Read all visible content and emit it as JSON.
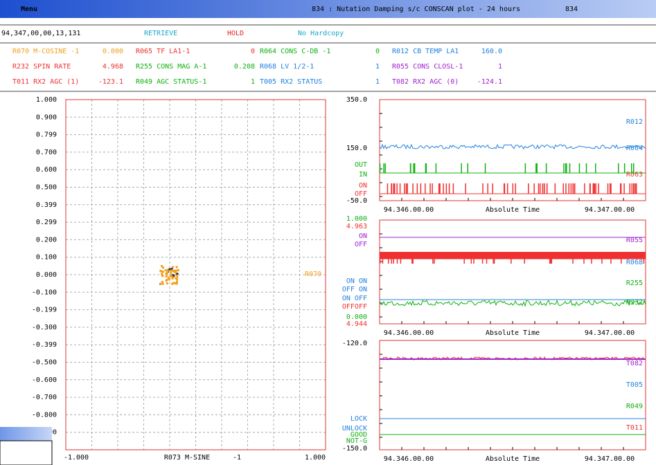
{
  "menu_bar": {
    "menu": "Menu",
    "title": "834 : Nutation Damping s/c CONSCAN plot - 24 hours",
    "id": "834"
  },
  "toolbar": {
    "timestamp": "94,347,00,00,13,131",
    "retrieve": "RETRIEVE",
    "hold": "HOLD",
    "hardcopy": "No Hardcopy"
  },
  "parameters": [
    [
      {
        "name": "R070 M-COSINE -1",
        "value": "0.000"
      },
      {
        "name": "R065 TF LA1-1",
        "value": "0"
      },
      {
        "name": "R064 CONS C-DB -1",
        "value": "0"
      },
      {
        "name": "R012 CB TEMP LA1",
        "value": "160.0"
      }
    ],
    [
      {
        "name": "R232 SPIN RATE",
        "value": "4.968"
      },
      {
        "name": "R255 CONS MAG A-1",
        "value": "0.208"
      },
      {
        "name": "R068 LV 1/2-1",
        "value": "1"
      },
      {
        "name": "R055 CONS CLOSL-1",
        "value": "1"
      }
    ],
    [
      {
        "name": "T011 RX2 AGC (1)",
        "value": "-123.1"
      },
      {
        "name": "R049 AGC STATUS-1",
        "value": "1"
      },
      {
        "name": "T005 RX2 STATUS",
        "value": "1"
      },
      {
        "name": "T082 RX2 AGC (0)",
        "value": "-124.1"
      }
    ]
  ],
  "xy_plot": {
    "yticks": [
      "1.000",
      "0.900",
      "0.799",
      "0.700",
      "0.600",
      "0.500",
      "0.399",
      "0.299",
      "0.200",
      "0.100",
      "0.000",
      "-0.100",
      "-0.199",
      "-0.300",
      "-0.399",
      "-0.500",
      "-0.600",
      "-0.700",
      "-0.800",
      "-0.900"
    ],
    "xlabels": [
      "-1.000",
      "R073 M-SINE",
      "-1",
      "1.000"
    ],
    "trace_label": "R070"
  },
  "time_plots": [
    {
      "left_labels": [
        "350.0",
        "150.0",
        "OUT",
        "IN",
        "ON",
        "OFF",
        "-50.0"
      ],
      "right_labels": [
        "R012",
        "R064",
        "R063"
      ],
      "xlabels": [
        "94.346.00.00",
        "Absolute Time",
        "94.347.00.00"
      ]
    },
    {
      "left_labels": [
        "1.000",
        "4.963",
        "ON",
        "OFF",
        "ON ON",
        "OFF ON",
        "ON OFF",
        "OFFOFF",
        "0.000",
        "4.944"
      ],
      "right_labels": [
        "R055",
        "R068",
        "R255",
        "R232"
      ],
      "xlabels": [
        "94.346.00.00",
        "Absolute Time",
        "94.347.00.00"
      ]
    },
    {
      "left_labels": [
        "-120.0",
        "LOCK",
        "UNLOCK",
        "GOOD",
        "NOT-G",
        "-150.0"
      ],
      "right_labels": [
        "T082",
        "T005",
        "R049",
        "T011"
      ],
      "xlabels": [
        "94.346.00.00",
        "Absolute Time",
        "94.347.00.00"
      ]
    }
  ]
}
